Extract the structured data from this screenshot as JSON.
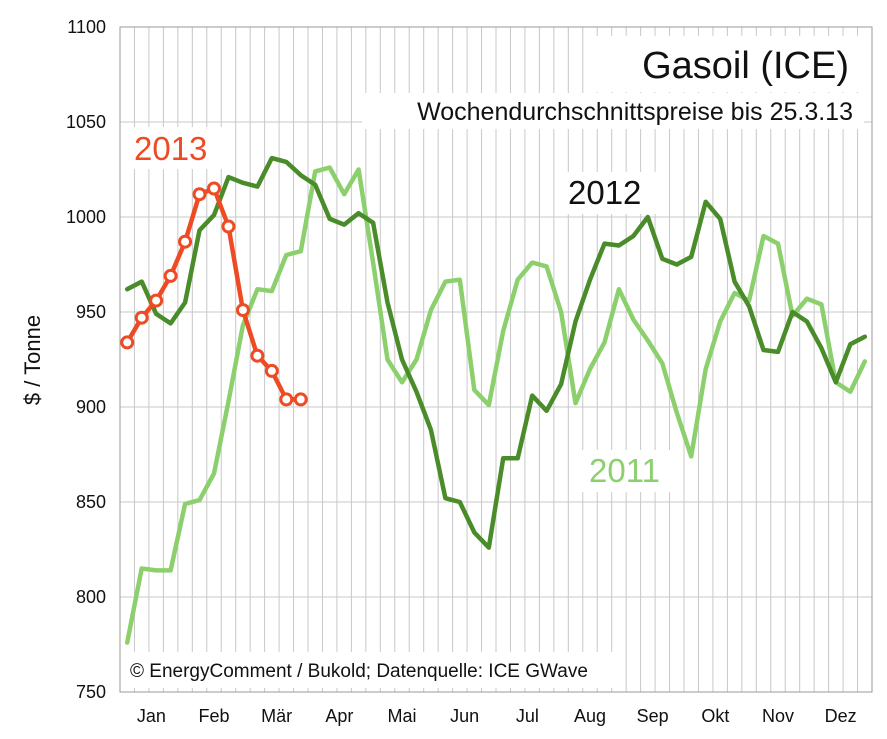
{
  "chart_data": {
    "type": "line",
    "title": "Gasoil (ICE)",
    "subtitle": "Wochendurchschnittspreise bis 25.3.13",
    "ylabel": "$ / Tonne",
    "ylim": [
      750,
      1100
    ],
    "yticks": [
      750,
      800,
      850,
      900,
      950,
      1000,
      1050,
      1100
    ],
    "month_labels": [
      "Jan",
      "Feb",
      "Mär",
      "Apr",
      "Mai",
      "Jun",
      "Jul",
      "Aug",
      "Sep",
      "Okt",
      "Nov",
      "Dez"
    ],
    "x_unit": "week",
    "xlim": [
      1,
      52
    ],
    "grid": true,
    "source": "© EnergyComment / Bukold; Datenquelle: ICE GWave",
    "series": [
      {
        "name": "2011",
        "color": "#8cd06e",
        "marker": "none",
        "values": [
          776,
          815,
          814,
          814,
          849,
          851,
          865,
          903,
          943,
          962,
          961,
          980,
          982,
          1024,
          1026,
          1012,
          1025,
          976,
          925,
          913,
          925,
          951,
          966,
          967,
          909,
          901,
          940,
          967,
          976,
          974,
          950,
          902,
          920,
          934,
          962,
          946,
          935,
          923,
          897,
          874,
          920,
          945,
          960,
          956,
          990,
          986,
          948,
          957,
          954,
          913,
          908,
          924
        ]
      },
      {
        "name": "2012",
        "color": "#4a8c2a",
        "marker": "none",
        "values": [
          962,
          966,
          949,
          944,
          955,
          993,
          1001,
          1021,
          1018,
          1016,
          1031,
          1029,
          1022,
          1017,
          999,
          996,
          1002,
          997,
          955,
          925,
          908,
          888,
          852,
          850,
          834,
          826,
          873,
          873,
          906,
          898,
          912,
          945,
          967,
          986,
          985,
          990,
          1000,
          978,
          975,
          979,
          1008,
          999,
          966,
          953,
          930,
          929,
          950,
          945,
          931,
          913,
          933,
          937
        ]
      },
      {
        "name": "2013",
        "color": "#ee4b24",
        "marker": "circle",
        "values": [
          934,
          947,
          956,
          969,
          987,
          1012,
          1015,
          995,
          951,
          927,
          919,
          904,
          904
        ]
      }
    ]
  }
}
